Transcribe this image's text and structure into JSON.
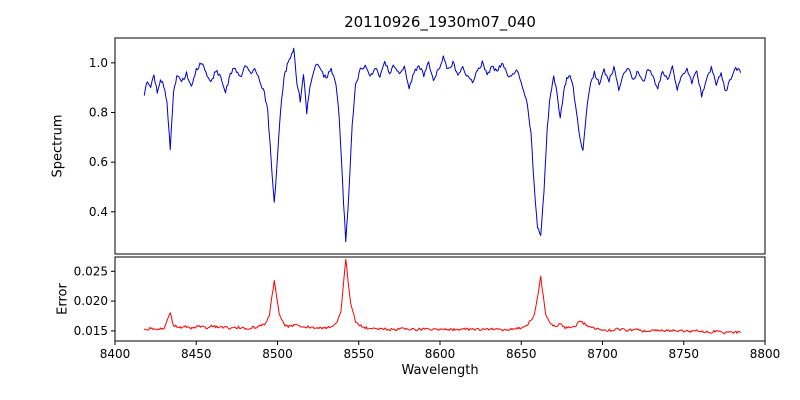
{
  "chart_data": {
    "type": "line",
    "title": "20110926_1930m07_040",
    "xlabel": "Wavelength",
    "xlim": [
      8400,
      8800
    ],
    "grid": false,
    "legend": null,
    "line_width": 1.0,
    "x_ticks": {
      "values": [
        8400,
        8450,
        8500,
        8550,
        8600,
        8650,
        8700,
        8750,
        8800
      ],
      "labels": [
        "8400",
        "8450",
        "8500",
        "8550",
        "8600",
        "8650",
        "8700",
        "8750",
        "8800"
      ]
    },
    "panels": [
      {
        "name": "spectrum",
        "ylabel": "Spectrum",
        "color": "#0000cd",
        "ylim": [
          0.23,
          1.1
        ],
        "y_ticks": {
          "values": [
            0.4,
            0.6,
            0.8,
            1.0
          ],
          "labels": [
            "0.4",
            "0.6",
            "0.8",
            "1.0"
          ]
        },
        "noise_amplitude": 0.009,
        "seed": 7,
        "absorption_lines": [
          {
            "center": 8434,
            "min": 0.65
          },
          {
            "center": 8498,
            "min": 0.43
          },
          {
            "center": 8542,
            "min": 0.28
          },
          {
            "center": 8662,
            "min": 0.3
          },
          {
            "center": 8674,
            "min": 0.77
          },
          {
            "center": 8688,
            "min": 0.65
          }
        ],
        "anchors": [
          [
            8418,
            0.87
          ],
          [
            8420,
            0.93
          ],
          [
            8422,
            0.9
          ],
          [
            8424,
            0.95
          ],
          [
            8426,
            0.88
          ],
          [
            8428,
            0.94
          ],
          [
            8430,
            0.91
          ],
          [
            8432,
            0.84
          ],
          [
            8434,
            0.65
          ],
          [
            8436,
            0.88
          ],
          [
            8438,
            0.95
          ],
          [
            8441,
            0.92
          ],
          [
            8444,
            0.96
          ],
          [
            8447,
            0.9
          ],
          [
            8450,
            0.97
          ],
          [
            8453,
            1.0
          ],
          [
            8456,
            0.96
          ],
          [
            8459,
            0.92
          ],
          [
            8462,
            0.97
          ],
          [
            8465,
            0.94
          ],
          [
            8468,
            0.88
          ],
          [
            8471,
            0.96
          ],
          [
            8474,
            0.98
          ],
          [
            8477,
            0.94
          ],
          [
            8480,
            0.99
          ],
          [
            8483,
            0.96
          ],
          [
            8486,
            0.97
          ],
          [
            8489,
            0.93
          ],
          [
            8492,
            0.88
          ],
          [
            8494,
            0.8
          ],
          [
            8496,
            0.62
          ],
          [
            8498,
            0.43
          ],
          [
            8500,
            0.62
          ],
          [
            8502,
            0.82
          ],
          [
            8504,
            0.94
          ],
          [
            8506,
            0.99
          ],
          [
            8508,
            1.02
          ],
          [
            8510,
            1.06
          ],
          [
            8512,
            0.92
          ],
          [
            8514,
            0.85
          ],
          [
            8516,
            0.96
          ],
          [
            8518,
            0.8
          ],
          [
            8520,
            0.9
          ],
          [
            8522,
            0.96
          ],
          [
            8524,
            1.0
          ],
          [
            8527,
            0.96
          ],
          [
            8530,
            0.94
          ],
          [
            8533,
            0.98
          ],
          [
            8536,
            0.91
          ],
          [
            8538,
            0.78
          ],
          [
            8540,
            0.52
          ],
          [
            8542,
            0.28
          ],
          [
            8544,
            0.48
          ],
          [
            8546,
            0.75
          ],
          [
            8548,
            0.91
          ],
          [
            8551,
            0.97
          ],
          [
            8554,
            0.99
          ],
          [
            8557,
            0.94
          ],
          [
            8560,
            0.98
          ],
          [
            8563,
            0.94
          ],
          [
            8566,
            1.0
          ],
          [
            8569,
            0.96
          ],
          [
            8572,
            0.99
          ],
          [
            8575,
            0.95
          ],
          [
            8578,
            0.98
          ],
          [
            8581,
            0.9
          ],
          [
            8584,
            0.96
          ],
          [
            8587,
            0.99
          ],
          [
            8590,
            0.95
          ],
          [
            8593,
            1.0
          ],
          [
            8596,
            0.93
          ],
          [
            8599,
            0.97
          ],
          [
            8602,
            1.02
          ],
          [
            8605,
            0.97
          ],
          [
            8608,
            1.0
          ],
          [
            8611,
            0.95
          ],
          [
            8614,
            0.99
          ],
          [
            8617,
            0.94
          ],
          [
            8620,
            0.92
          ],
          [
            8623,
            0.97
          ],
          [
            8626,
            1.0
          ],
          [
            8629,
            0.95
          ],
          [
            8632,
            0.99
          ],
          [
            8635,
            0.96
          ],
          [
            8638,
            1.0
          ],
          [
            8641,
            0.96
          ],
          [
            8644,
            0.94
          ],
          [
            8647,
            0.97
          ],
          [
            8650,
            0.92
          ],
          [
            8653,
            0.86
          ],
          [
            8656,
            0.72
          ],
          [
            8658,
            0.5
          ],
          [
            8660,
            0.34
          ],
          [
            8662,
            0.3
          ],
          [
            8664,
            0.48
          ],
          [
            8666,
            0.74
          ],
          [
            8668,
            0.88
          ],
          [
            8670,
            0.94
          ],
          [
            8672,
            0.88
          ],
          [
            8674,
            0.77
          ],
          [
            8676,
            0.88
          ],
          [
            8678,
            0.94
          ],
          [
            8680,
            0.95
          ],
          [
            8682,
            0.9
          ],
          [
            8684,
            0.8
          ],
          [
            8686,
            0.7
          ],
          [
            8688,
            0.65
          ],
          [
            8690,
            0.8
          ],
          [
            8692,
            0.9
          ],
          [
            8695,
            0.96
          ],
          [
            8698,
            0.92
          ],
          [
            8701,
            0.97
          ],
          [
            8704,
            0.93
          ],
          [
            8707,
            0.98
          ],
          [
            8710,
            0.89
          ],
          [
            8713,
            0.95
          ],
          [
            8716,
            0.98
          ],
          [
            8719,
            0.93
          ],
          [
            8722,
            0.97
          ],
          [
            8725,
            0.92
          ],
          [
            8728,
            0.98
          ],
          [
            8731,
            0.94
          ],
          [
            8734,
            0.9
          ],
          [
            8737,
            0.97
          ],
          [
            8740,
            0.93
          ],
          [
            8743,
            0.98
          ],
          [
            8746,
            0.89
          ],
          [
            8749,
            0.95
          ],
          [
            8752,
            0.98
          ],
          [
            8755,
            0.92
          ],
          [
            8758,
            0.97
          ],
          [
            8761,
            0.87
          ],
          [
            8764,
            0.93
          ],
          [
            8767,
            0.98
          ],
          [
            8770,
            0.91
          ],
          [
            8773,
            0.96
          ],
          [
            8776,
            0.88
          ],
          [
            8779,
            0.94
          ],
          [
            8782,
            0.98
          ],
          [
            8785,
            0.96
          ]
        ]
      },
      {
        "name": "error",
        "ylabel": "Error",
        "color": "#ff0000",
        "ylim": [
          0.0133,
          0.0274
        ],
        "y_ticks": {
          "values": [
            0.015,
            0.02,
            0.025
          ],
          "labels": [
            "0.015",
            "0.020",
            "0.025"
          ]
        },
        "noise_amplitude": 0.00022,
        "seed": 3,
        "peaks": [
          {
            "center": 8434,
            "max": 0.018
          },
          {
            "center": 8498,
            "max": 0.0235
          },
          {
            "center": 8542,
            "max": 0.027
          },
          {
            "center": 8662,
            "max": 0.024
          }
        ],
        "anchors": [
          [
            8418,
            0.0152
          ],
          [
            8422,
            0.0154
          ],
          [
            8426,
            0.0153
          ],
          [
            8430,
            0.0155
          ],
          [
            8433,
            0.0172
          ],
          [
            8434,
            0.018
          ],
          [
            8436,
            0.016
          ],
          [
            8440,
            0.0155
          ],
          [
            8444,
            0.0157
          ],
          [
            8448,
            0.0154
          ],
          [
            8452,
            0.0158
          ],
          [
            8456,
            0.0155
          ],
          [
            8460,
            0.0159
          ],
          [
            8464,
            0.0155
          ],
          [
            8468,
            0.0157
          ],
          [
            8472,
            0.0154
          ],
          [
            8476,
            0.0156
          ],
          [
            8480,
            0.0153
          ],
          [
            8484,
            0.0155
          ],
          [
            8488,
            0.0157
          ],
          [
            8492,
            0.0162
          ],
          [
            8495,
            0.0175
          ],
          [
            8498,
            0.0235
          ],
          [
            8501,
            0.0178
          ],
          [
            8504,
            0.016
          ],
          [
            8508,
            0.0157
          ],
          [
            8512,
            0.016
          ],
          [
            8516,
            0.0158
          ],
          [
            8520,
            0.0156
          ],
          [
            8524,
            0.0154
          ],
          [
            8528,
            0.0155
          ],
          [
            8532,
            0.0156
          ],
          [
            8536,
            0.0162
          ],
          [
            8539,
            0.018
          ],
          [
            8542,
            0.027
          ],
          [
            8545,
            0.0195
          ],
          [
            8548,
            0.0165
          ],
          [
            8552,
            0.0157
          ],
          [
            8556,
            0.0154
          ],
          [
            8560,
            0.0153
          ],
          [
            8565,
            0.0154
          ],
          [
            8570,
            0.0152
          ],
          [
            8575,
            0.0153
          ],
          [
            8580,
            0.0154
          ],
          [
            8585,
            0.0152
          ],
          [
            8590,
            0.0153
          ],
          [
            8595,
            0.0152
          ],
          [
            8600,
            0.0153
          ],
          [
            8605,
            0.0152
          ],
          [
            8610,
            0.0152
          ],
          [
            8615,
            0.0153
          ],
          [
            8620,
            0.0152
          ],
          [
            8625,
            0.0152
          ],
          [
            8630,
            0.0153
          ],
          [
            8635,
            0.0152
          ],
          [
            8640,
            0.0152
          ],
          [
            8645,
            0.0153
          ],
          [
            8650,
            0.0155
          ],
          [
            8654,
            0.016
          ],
          [
            8658,
            0.0175
          ],
          [
            8662,
            0.024
          ],
          [
            8665,
            0.018
          ],
          [
            8668,
            0.016
          ],
          [
            8671,
            0.0157
          ],
          [
            8674,
            0.0162
          ],
          [
            8677,
            0.0155
          ],
          [
            8680,
            0.0156
          ],
          [
            8683,
            0.0158
          ],
          [
            8686,
            0.0165
          ],
          [
            8689,
            0.0162
          ],
          [
            8692,
            0.0156
          ],
          [
            8696,
            0.0154
          ],
          [
            8700,
            0.0152
          ],
          [
            8705,
            0.0151
          ],
          [
            8710,
            0.0153
          ],
          [
            8715,
            0.0151
          ],
          [
            8720,
            0.0152
          ],
          [
            8725,
            0.015
          ],
          [
            8730,
            0.0151
          ],
          [
            8735,
            0.015
          ],
          [
            8740,
            0.0151
          ],
          [
            8745,
            0.015
          ],
          [
            8750,
            0.015
          ],
          [
            8755,
            0.0149
          ],
          [
            8760,
            0.015
          ],
          [
            8765,
            0.0148
          ],
          [
            8770,
            0.0149
          ],
          [
            8775,
            0.0147
          ],
          [
            8780,
            0.0148
          ],
          [
            8785,
            0.0147
          ]
        ]
      }
    ]
  }
}
